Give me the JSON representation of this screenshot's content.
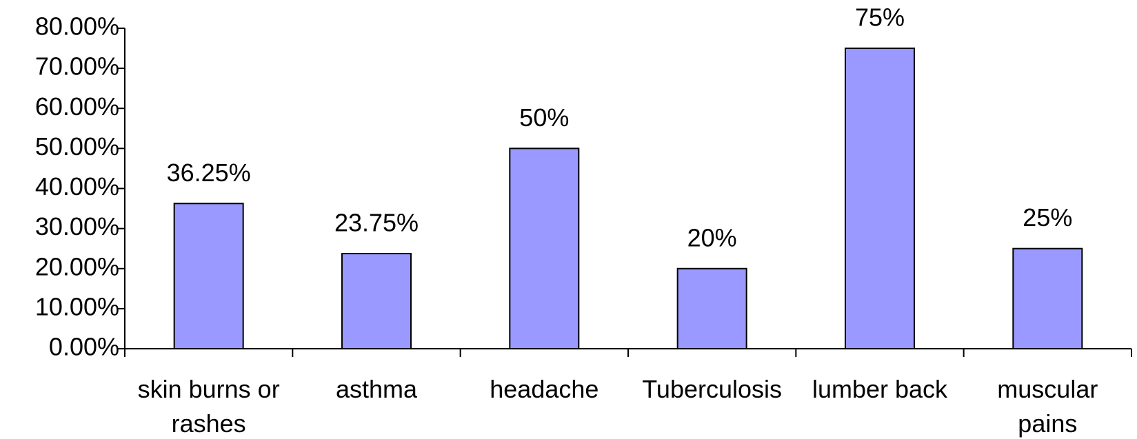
{
  "chart_data": {
    "type": "bar",
    "categories": [
      "skin burns or rashes",
      "asthma",
      "headache",
      "Tuberculosis",
      "lumber back",
      "muscular pains"
    ],
    "values": [
      36.25,
      23.75,
      50,
      20,
      75,
      25
    ],
    "value_labels": [
      "36.25%",
      "23.75%",
      "50%",
      "20%",
      "75%",
      "25%"
    ],
    "color": "#9999ff",
    "ylim": [
      0,
      80
    ],
    "yticks": [
      {
        "value": 0,
        "label": "0.00%"
      },
      {
        "value": 10,
        "label": "10.00%"
      },
      {
        "value": 20,
        "label": "20.00%"
      },
      {
        "value": 30,
        "label": "30.00%"
      },
      {
        "value": 40,
        "label": "40.00%"
      },
      {
        "value": 50,
        "label": "50.00%"
      },
      {
        "value": 60,
        "label": "60.00%"
      },
      {
        "value": 70,
        "label": "70.00%"
      },
      {
        "value": 80,
        "label": "80.00%"
      }
    ],
    "grid": false
  }
}
